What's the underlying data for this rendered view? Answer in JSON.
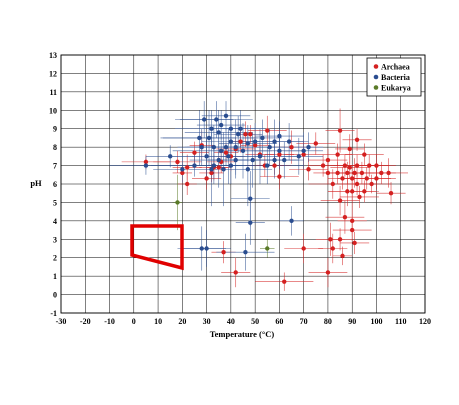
{
  "chart_data": {
    "type": "scatter",
    "xlabel": "Temperature (°C)",
    "ylabel": "pH",
    "xlim": [
      -30,
      120
    ],
    "ylim": [
      -1,
      13
    ],
    "xticks": [
      "-30",
      "-20",
      "-10",
      "0",
      "10",
      "20",
      "30",
      "40",
      "50",
      "60",
      "70",
      "80",
      "90",
      "100",
      "110",
      "120"
    ],
    "yticks": [
      "-1",
      "0",
      "1",
      "2",
      "3",
      "4",
      "5",
      "6",
      "7",
      "8",
      "9",
      "10",
      "11",
      "12",
      "13"
    ],
    "grid": true,
    "legend_position": "top-right",
    "series": [
      {
        "name": "Archaea",
        "color": "#d42020",
        "points": [
          [
            5,
            7.2,
            10,
            0.4
          ],
          [
            18,
            7.2,
            10,
            0.6
          ],
          [
            20,
            6.6,
            4,
            0.5
          ],
          [
            22,
            6.9,
            6,
            0.7
          ],
          [
            22,
            6.0,
            4,
            0.6
          ],
          [
            25,
            7.7,
            6,
            0.6
          ],
          [
            28,
            8.1,
            5,
            0.8
          ],
          [
            30,
            6.3,
            6,
            0.6
          ],
          [
            32,
            6.6,
            5,
            0.5
          ],
          [
            33,
            6.9,
            6,
            0.7
          ],
          [
            35,
            6.9,
            5,
            0.6
          ],
          [
            36,
            7.2,
            6,
            0.6
          ],
          [
            37,
            2.3,
            5,
            0.6
          ],
          [
            38,
            7.7,
            5,
            0.5
          ],
          [
            40,
            7.5,
            6,
            0.8
          ],
          [
            42,
            1.2,
            6,
            0.8
          ],
          [
            42,
            7.9,
            8,
            0.6
          ],
          [
            44,
            8.3,
            5,
            0.6
          ],
          [
            46,
            8.7,
            6,
            0.7
          ],
          [
            48,
            8.7,
            5,
            0.5
          ],
          [
            50,
            8.1,
            6,
            0.6
          ],
          [
            52,
            7.6,
            6,
            0.6
          ],
          [
            54,
            7.0,
            8,
            0.6
          ],
          [
            55,
            8.9,
            8,
            0.8
          ],
          [
            58,
            7.0,
            7,
            0.5
          ],
          [
            60,
            7.6,
            6,
            0.6
          ],
          [
            60,
            6.4,
            8,
            0.7
          ],
          [
            62,
            0.7,
            12,
            0.5
          ],
          [
            65,
            8.0,
            8,
            0.9
          ],
          [
            70,
            7.6,
            8,
            0.8
          ],
          [
            70,
            2.5,
            8,
            0.8
          ],
          [
            72,
            6.8,
            8,
            0.6
          ],
          [
            75,
            8.2,
            8,
            0.6
          ],
          [
            78,
            7.0,
            6,
            0.6
          ],
          [
            80,
            6.6,
            6,
            0.6
          ],
          [
            80,
            7.3,
            8,
            0.6
          ],
          [
            80,
            1.2,
            8,
            0.8
          ],
          [
            81,
            3.0,
            6,
            0.9
          ],
          [
            82,
            2.5,
            6,
            0.8
          ],
          [
            82,
            6.0,
            10,
            0.8
          ],
          [
            84,
            6.6,
            6,
            0.6
          ],
          [
            84,
            7.6,
            6,
            0.6
          ],
          [
            85,
            5.1,
            8,
            0.8
          ],
          [
            85,
            8.9,
            6,
            1.2
          ],
          [
            85,
            3.0,
            5,
            0.6
          ],
          [
            86,
            2.1,
            4,
            0.5
          ],
          [
            86,
            6.3,
            6,
            0.6
          ],
          [
            87,
            7.0,
            6,
            0.6
          ],
          [
            87,
            4.2,
            8,
            0.9
          ],
          [
            88,
            5.6,
            8,
            0.8
          ],
          [
            88,
            6.6,
            8,
            0.6
          ],
          [
            89,
            6.9,
            8,
            0.6
          ],
          [
            89,
            7.9,
            6,
            0.8
          ],
          [
            90,
            6.3,
            6,
            0.6
          ],
          [
            90,
            5.6,
            10,
            0.8
          ],
          [
            90,
            3.5,
            8,
            0.6
          ],
          [
            90,
            4.0,
            6,
            0.8
          ],
          [
            91,
            6.6,
            8,
            0.8
          ],
          [
            91,
            2.8,
            6,
            0.6
          ],
          [
            92,
            6.0,
            8,
            0.6
          ],
          [
            92,
            7.0,
            8,
            0.6
          ],
          [
            92,
            8.4,
            6,
            0.6
          ],
          [
            93,
            5.3,
            8,
            0.6
          ],
          [
            94,
            6.6,
            8,
            0.6
          ],
          [
            95,
            5.6,
            6,
            0.6
          ],
          [
            95,
            7.6,
            8,
            0.6
          ],
          [
            96,
            6.3,
            10,
            0.6
          ],
          [
            97,
            7.0,
            8,
            0.6
          ],
          [
            98,
            6.0,
            8,
            0.5
          ],
          [
            100,
            6.3,
            8,
            0.6
          ],
          [
            100,
            7.0,
            8,
            0.6
          ],
          [
            102,
            6.6,
            6,
            0.6
          ],
          [
            105,
            6.6,
            8,
            0.8
          ],
          [
            106,
            5.5,
            6,
            0.6
          ]
        ]
      },
      {
        "name": "Bacteria",
        "color": "#2a4d90",
        "points": [
          [
            5,
            7.0,
            15,
            0.5
          ],
          [
            15,
            7.5,
            10,
            0.6
          ],
          [
            20,
            6.8,
            12,
            0.7
          ],
          [
            25,
            7.0,
            18,
            0.6
          ],
          [
            27,
            8.5,
            15,
            1.5
          ],
          [
            28,
            8.0,
            10,
            1.0
          ],
          [
            28,
            2.5,
            10,
            1.2
          ],
          [
            29,
            9.5,
            12,
            1.0
          ],
          [
            30,
            7.5,
            15,
            1.2
          ],
          [
            30,
            2.5,
            10,
            1.0
          ],
          [
            31,
            8.5,
            20,
            1.5
          ],
          [
            32,
            6.8,
            15,
            2.0
          ],
          [
            32,
            9.0,
            15,
            1.0
          ],
          [
            33,
            7.0,
            12,
            1.0
          ],
          [
            33,
            8.0,
            12,
            1.2
          ],
          [
            34,
            9.5,
            15,
            1.0
          ],
          [
            35,
            7.3,
            12,
            1.5
          ],
          [
            35,
            8.8,
            14,
            1.2
          ],
          [
            36,
            9.2,
            10,
            0.8
          ],
          [
            36,
            7.8,
            20,
            1.0
          ],
          [
            37,
            6.8,
            10,
            2.0
          ],
          [
            38,
            8.0,
            12,
            1.0
          ],
          [
            38,
            9.7,
            10,
            0.8
          ],
          [
            39,
            7.5,
            15,
            1.5
          ],
          [
            40,
            8.3,
            12,
            1.0
          ],
          [
            40,
            7.0,
            10,
            1.0
          ],
          [
            40,
            9.0,
            10,
            1.0
          ],
          [
            42,
            8.0,
            20,
            1.5
          ],
          [
            42,
            7.3,
            12,
            1.0
          ],
          [
            43,
            8.7,
            10,
            1.0
          ],
          [
            44,
            9.0,
            10,
            1.0
          ],
          [
            45,
            7.8,
            12,
            1.5
          ],
          [
            46,
            2.3,
            12,
            1.0
          ],
          [
            47,
            6.8,
            10,
            2.0
          ],
          [
            47,
            8.2,
            12,
            1.0
          ],
          [
            48,
            5.2,
            8,
            1.5
          ],
          [
            48,
            3.9,
            6,
            1.2
          ],
          [
            49,
            7.3,
            10,
            1.5
          ],
          [
            50,
            8.3,
            10,
            1.0
          ],
          [
            52,
            7.5,
            15,
            1.5
          ],
          [
            53,
            8.5,
            8,
            1.0
          ],
          [
            55,
            7.0,
            15,
            1.0
          ],
          [
            56,
            8.0,
            10,
            1.0
          ],
          [
            58,
            8.3,
            12,
            1.2
          ],
          [
            58,
            7.3,
            10,
            1.0
          ],
          [
            60,
            7.8,
            10,
            1.0
          ],
          [
            60,
            8.6,
            10,
            0.8
          ],
          [
            62,
            7.3,
            8,
            1.0
          ],
          [
            64,
            8.3,
            8,
            1.0
          ],
          [
            65,
            4.0,
            5,
            0.8
          ],
          [
            68,
            7.5,
            10,
            1.0
          ],
          [
            70,
            7.8,
            8,
            1.0
          ],
          [
            72,
            8.0,
            6,
            0.8
          ]
        ]
      },
      {
        "name": "Eukarya",
        "color": "#5a7a28",
        "points": [
          [
            18,
            5.0,
            2,
            1.5
          ],
          [
            55,
            2.5,
            3,
            0.5
          ]
        ]
      }
    ]
  }
}
